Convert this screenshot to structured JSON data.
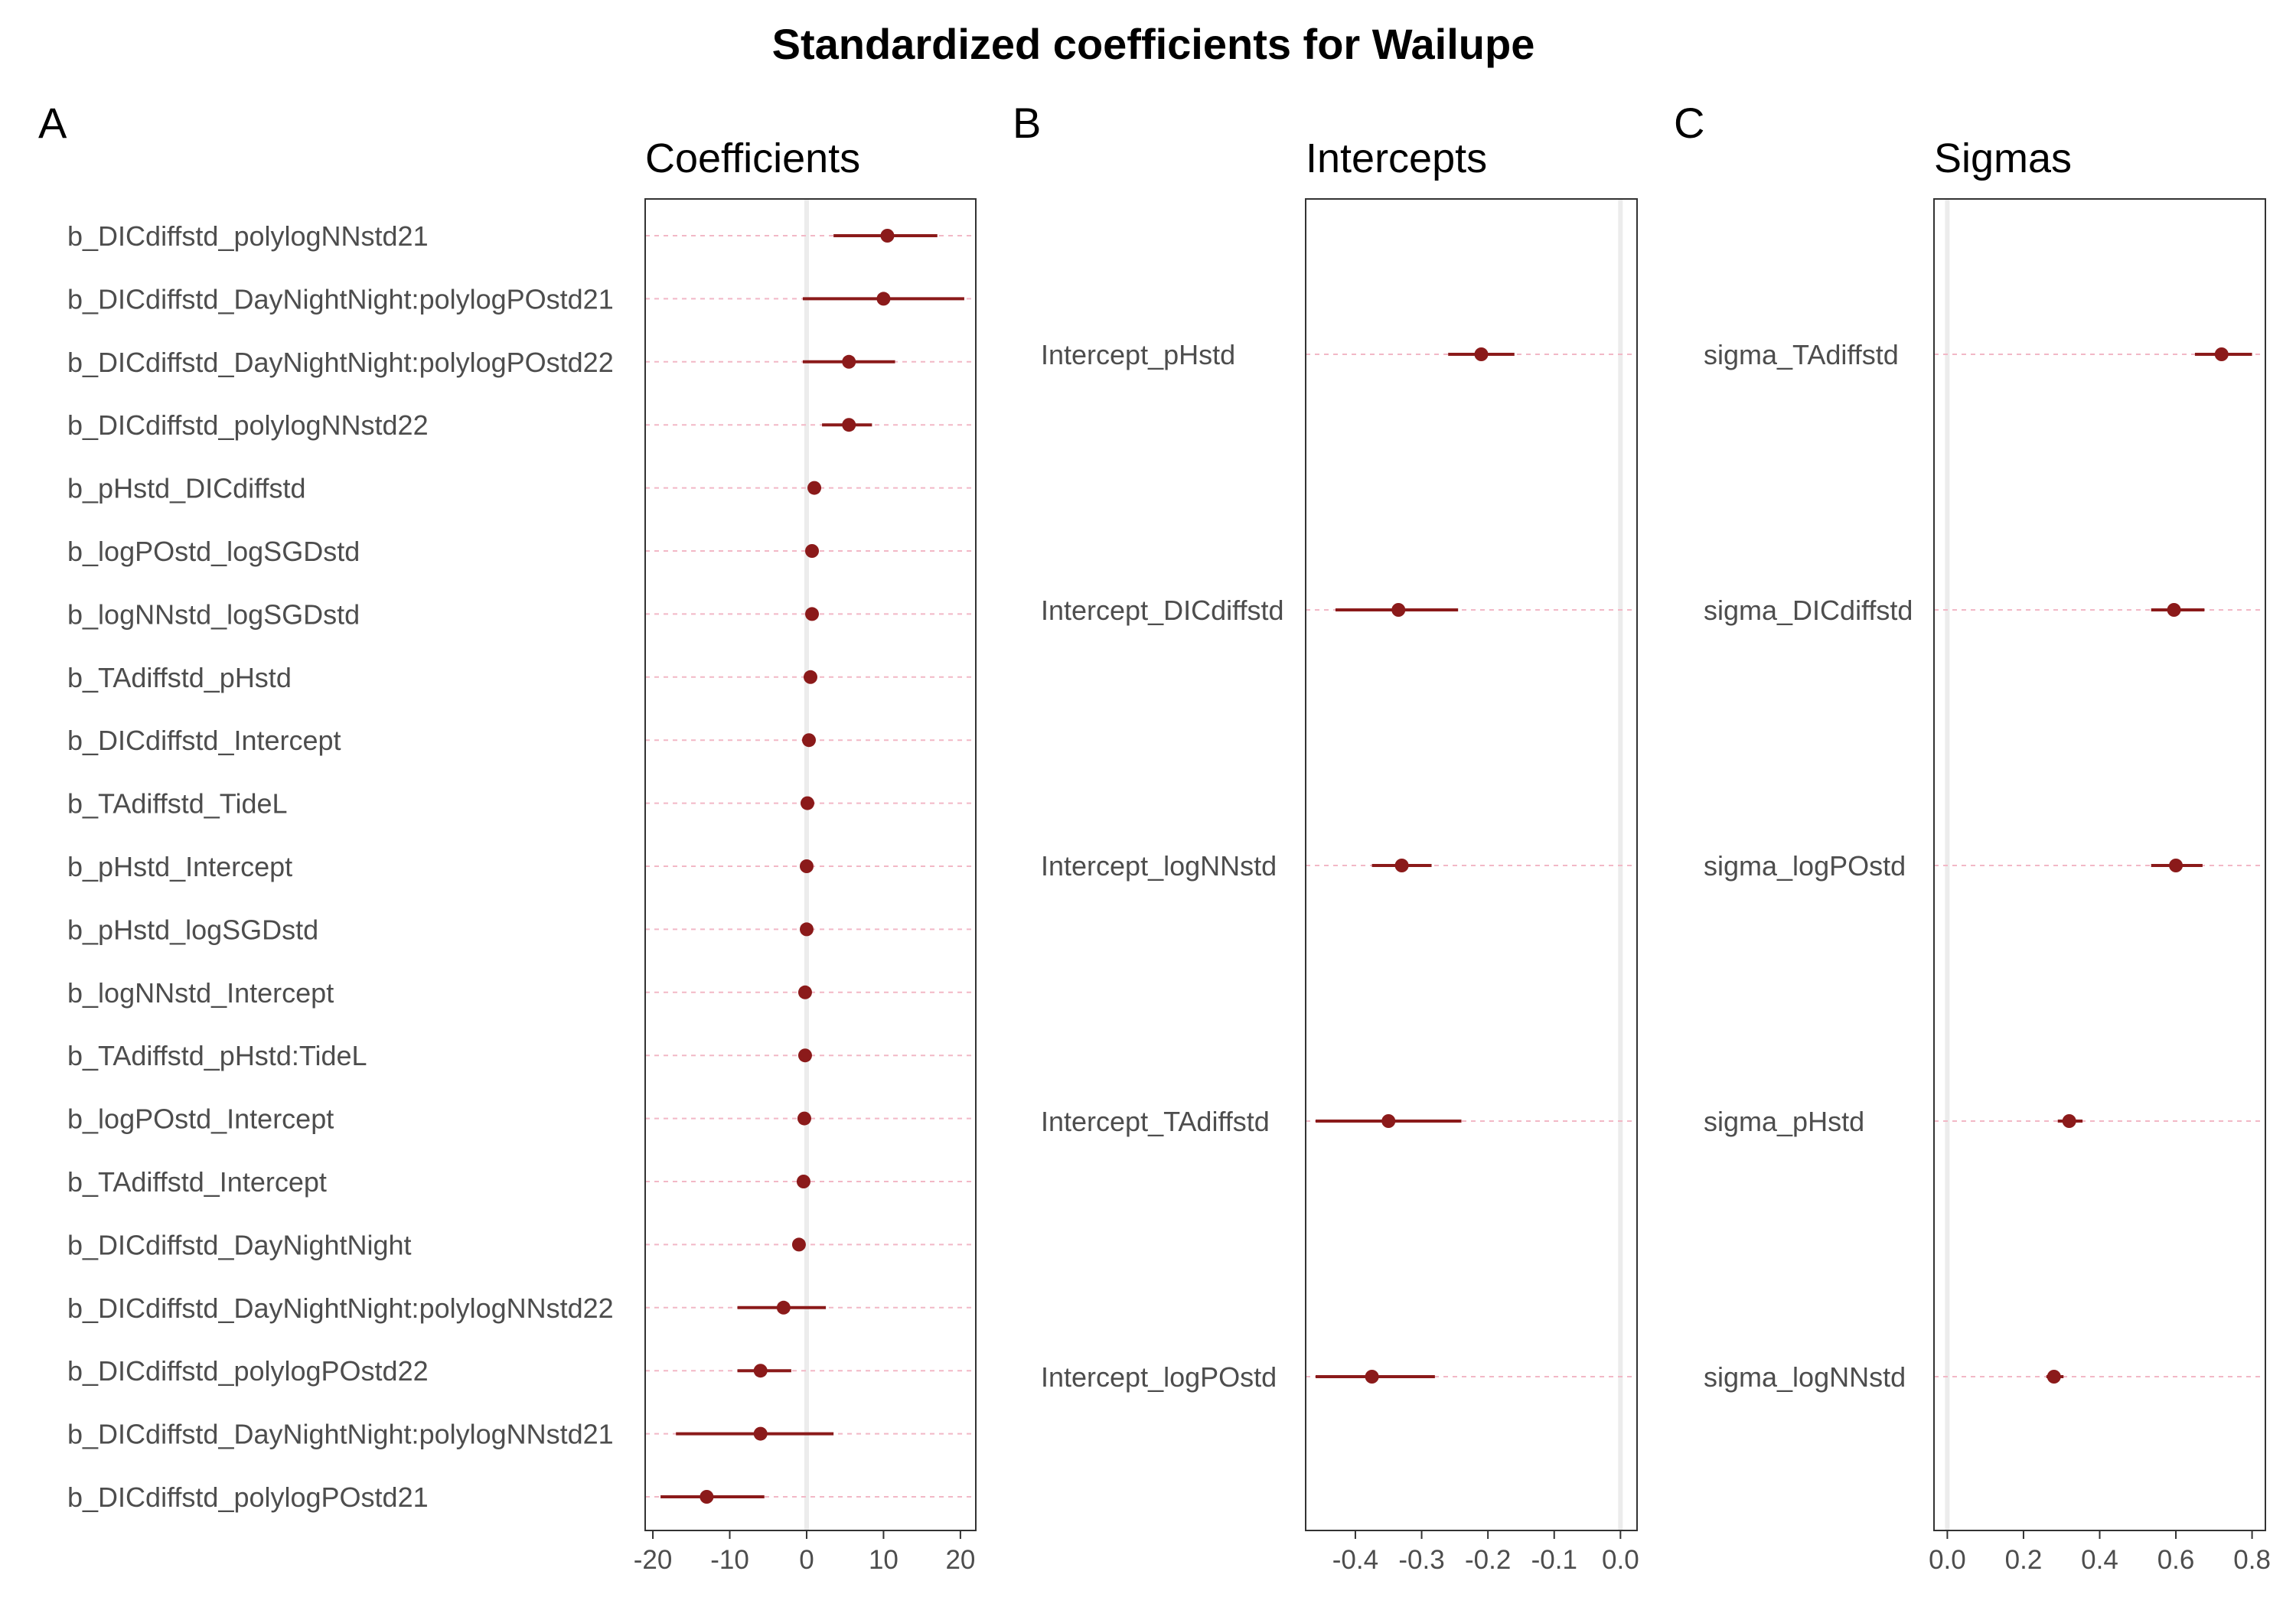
{
  "figure_title": "Standardized coefficients for Wailupe",
  "colors": {
    "point": "#8b1a1a",
    "interval": "#8b1a1a",
    "row_guide": "#f2b8c6",
    "zero_line": "#ececec",
    "frame": "#333333",
    "label_text": "#4d4d4d"
  },
  "chart_data": [
    {
      "type": "scatter",
      "panel": "A",
      "title": "Coefficients",
      "xlim": [
        -21,
        22
      ],
      "xticks": [
        -20,
        -10,
        0,
        10,
        20
      ],
      "xtick_labels": [
        "-20",
        "-10",
        "0",
        "10",
        "20"
      ],
      "rows": [
        {
          "label": "b_DICdiffstd_polylogNNstd21",
          "estimate": 10.5,
          "lower": 3.5,
          "upper": 17.0
        },
        {
          "label": "b_DICdiffstd_DayNightNight:polylogPOstd21",
          "estimate": 10.0,
          "lower": -0.5,
          "upper": 20.5
        },
        {
          "label": "b_DICdiffstd_DayNightNight:polylogPOstd22",
          "estimate": 5.5,
          "lower": -0.5,
          "upper": 11.5
        },
        {
          "label": "b_DICdiffstd_polylogNNstd22",
          "estimate": 5.5,
          "lower": 2.0,
          "upper": 8.5
        },
        {
          "label": "b_pHstd_DICdiffstd",
          "estimate": 1.0,
          "lower": 0.7,
          "upper": 1.3
        },
        {
          "label": "b_logPOstd_logSGDstd",
          "estimate": 0.7,
          "lower": 0.5,
          "upper": 0.9
        },
        {
          "label": "b_logNNstd_logSGDstd",
          "estimate": 0.7,
          "lower": 0.5,
          "upper": 0.9
        },
        {
          "label": "b_TAdiffstd_pHstd",
          "estimate": 0.5,
          "lower": 0.3,
          "upper": 0.7
        },
        {
          "label": "b_DICdiffstd_Intercept",
          "estimate": 0.3,
          "lower": 0.1,
          "upper": 0.5
        },
        {
          "label": "b_TAdiffstd_TideL",
          "estimate": 0.1,
          "lower": -0.1,
          "upper": 0.3
        },
        {
          "label": "b_pHstd_Intercept",
          "estimate": 0.0,
          "lower": -0.2,
          "upper": 0.2
        },
        {
          "label": "b_pHstd_logSGDstd",
          "estimate": 0.0,
          "lower": -0.2,
          "upper": 0.2
        },
        {
          "label": "b_logNNstd_Intercept",
          "estimate": -0.2,
          "lower": -0.4,
          "upper": 0.0
        },
        {
          "label": "b_TAdiffstd_pHstd:TideL",
          "estimate": -0.2,
          "lower": -0.4,
          "upper": 0.0
        },
        {
          "label": "b_logPOstd_Intercept",
          "estimate": -0.3,
          "lower": -0.5,
          "upper": -0.1
        },
        {
          "label": "b_TAdiffstd_Intercept",
          "estimate": -0.4,
          "lower": -0.6,
          "upper": -0.2
        },
        {
          "label": "b_DICdiffstd_DayNightNight",
          "estimate": -1.0,
          "lower": -1.3,
          "upper": -0.7
        },
        {
          "label": "b_DICdiffstd_DayNightNight:polylogNNstd22",
          "estimate": -3.0,
          "lower": -9.0,
          "upper": 2.5
        },
        {
          "label": "b_DICdiffstd_polylogPOstd22",
          "estimate": -6.0,
          "lower": -9.0,
          "upper": -2.0
        },
        {
          "label": "b_DICdiffstd_DayNightNight:polylogNNstd21",
          "estimate": -6.0,
          "lower": -17.0,
          "upper": 3.5
        },
        {
          "label": "b_DICdiffstd_polylogPOstd21",
          "estimate": -13.0,
          "lower": -19.0,
          "upper": -5.5
        }
      ]
    },
    {
      "type": "scatter",
      "panel": "B",
      "title": "Intercepts",
      "xlim": [
        -0.475,
        0.025
      ],
      "xticks": [
        -0.4,
        -0.3,
        -0.2,
        -0.1,
        0.0
      ],
      "xtick_labels": [
        "-0.4",
        "-0.3",
        "-0.2",
        "-0.1",
        "0.0"
      ],
      "rows": [
        {
          "label": "Intercept_pHstd",
          "estimate": -0.21,
          "lower": -0.26,
          "upper": -0.16
        },
        {
          "label": "Intercept_DICdiffstd",
          "estimate": -0.335,
          "lower": -0.43,
          "upper": -0.245
        },
        {
          "label": "Intercept_logNNstd",
          "estimate": -0.33,
          "lower": -0.375,
          "upper": -0.285
        },
        {
          "label": "Intercept_TAdiffstd",
          "estimate": -0.35,
          "lower": -0.46,
          "upper": -0.24
        },
        {
          "label": "Intercept_logPOstd",
          "estimate": -0.375,
          "lower": -0.46,
          "upper": -0.28
        }
      ]
    },
    {
      "type": "scatter",
      "panel": "C",
      "title": "Sigmas",
      "xlim": [
        -0.035,
        0.835
      ],
      "xticks": [
        0.0,
        0.2,
        0.4,
        0.6,
        0.8
      ],
      "xtick_labels": [
        "0.0",
        "0.2",
        "0.4",
        "0.6",
        "0.8"
      ],
      "rows": [
        {
          "label": "sigma_TAdiffstd",
          "estimate": 0.72,
          "lower": 0.65,
          "upper": 0.8
        },
        {
          "label": "sigma_DICdiffstd",
          "estimate": 0.595,
          "lower": 0.535,
          "upper": 0.675
        },
        {
          "label": "sigma_logPOstd",
          "estimate": 0.6,
          "lower": 0.535,
          "upper": 0.67
        },
        {
          "label": "sigma_pHstd",
          "estimate": 0.32,
          "lower": 0.29,
          "upper": 0.355
        },
        {
          "label": "sigma_logNNstd",
          "estimate": 0.28,
          "lower": 0.26,
          "upper": 0.305
        }
      ]
    }
  ]
}
